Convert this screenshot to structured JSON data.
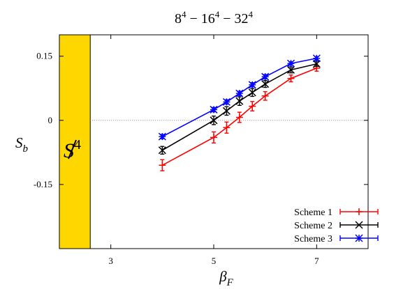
{
  "chart_data": {
    "type": "line",
    "title": {
      "base1": "8",
      "exp1": "4",
      "sep1": " − ",
      "base2": "16",
      "exp2": "4",
      "sep2": " − ",
      "base3": "32",
      "exp3": "4"
    },
    "xlabel": {
      "main": "β",
      "sub": "F"
    },
    "ylabel": {
      "main": "S",
      "sub": "b"
    },
    "xlim": [
      2,
      8
    ],
    "ylim": [
      -0.3,
      0.2
    ],
    "x_ticks": [
      3,
      5,
      7
    ],
    "x_tick_labels": [
      "3",
      "5",
      "7"
    ],
    "y_ticks": [
      0.15,
      0,
      -0.15
    ],
    "y_tick_labels": [
      "0.15",
      "0",
      "-0.15"
    ],
    "grid": false,
    "reference_line": {
      "y": 0,
      "style": "dotted"
    },
    "shaded_region": {
      "x_from": 2,
      "x_to": 2.6,
      "color": "#FFD700",
      "label": {
        "main": "S",
        "sup": "4"
      }
    },
    "legend_position": "bottom-right",
    "series": [
      {
        "name": "Scheme 1",
        "color": "#ff0000",
        "marker": "plus",
        "x": [
          4.0,
          5.0,
          5.25,
          5.5,
          5.75,
          6.0,
          6.5,
          7.0
        ],
        "y": [
          -0.105,
          -0.04,
          -0.017,
          0.007,
          0.033,
          0.057,
          0.098,
          0.122
        ],
        "err": [
          0.013,
          0.013,
          0.013,
          0.012,
          0.011,
          0.01,
          0.008,
          0.007
        ]
      },
      {
        "name": "Scheme 2",
        "color": "#000000",
        "marker": "cross",
        "x": [
          4.0,
          5.0,
          5.25,
          5.5,
          5.75,
          6.0,
          6.5,
          7.0
        ],
        "y": [
          -0.07,
          0.0,
          0.022,
          0.045,
          0.065,
          0.085,
          0.118,
          0.132
        ],
        "err": [
          0.009,
          0.01,
          0.01,
          0.01,
          0.009,
          0.008,
          0.007,
          0.006
        ]
      },
      {
        "name": "Scheme 3",
        "color": "#0000ff",
        "marker": "star",
        "x": [
          4.0,
          5.0,
          5.25,
          5.5,
          5.75,
          6.0,
          6.5,
          7.0
        ],
        "y": [
          -0.038,
          0.025,
          0.043,
          0.063,
          0.083,
          0.102,
          0.133,
          0.145
        ],
        "err": [
          0.005,
          0.005,
          0.005,
          0.005,
          0.005,
          0.005,
          0.004,
          0.004
        ]
      }
    ]
  }
}
